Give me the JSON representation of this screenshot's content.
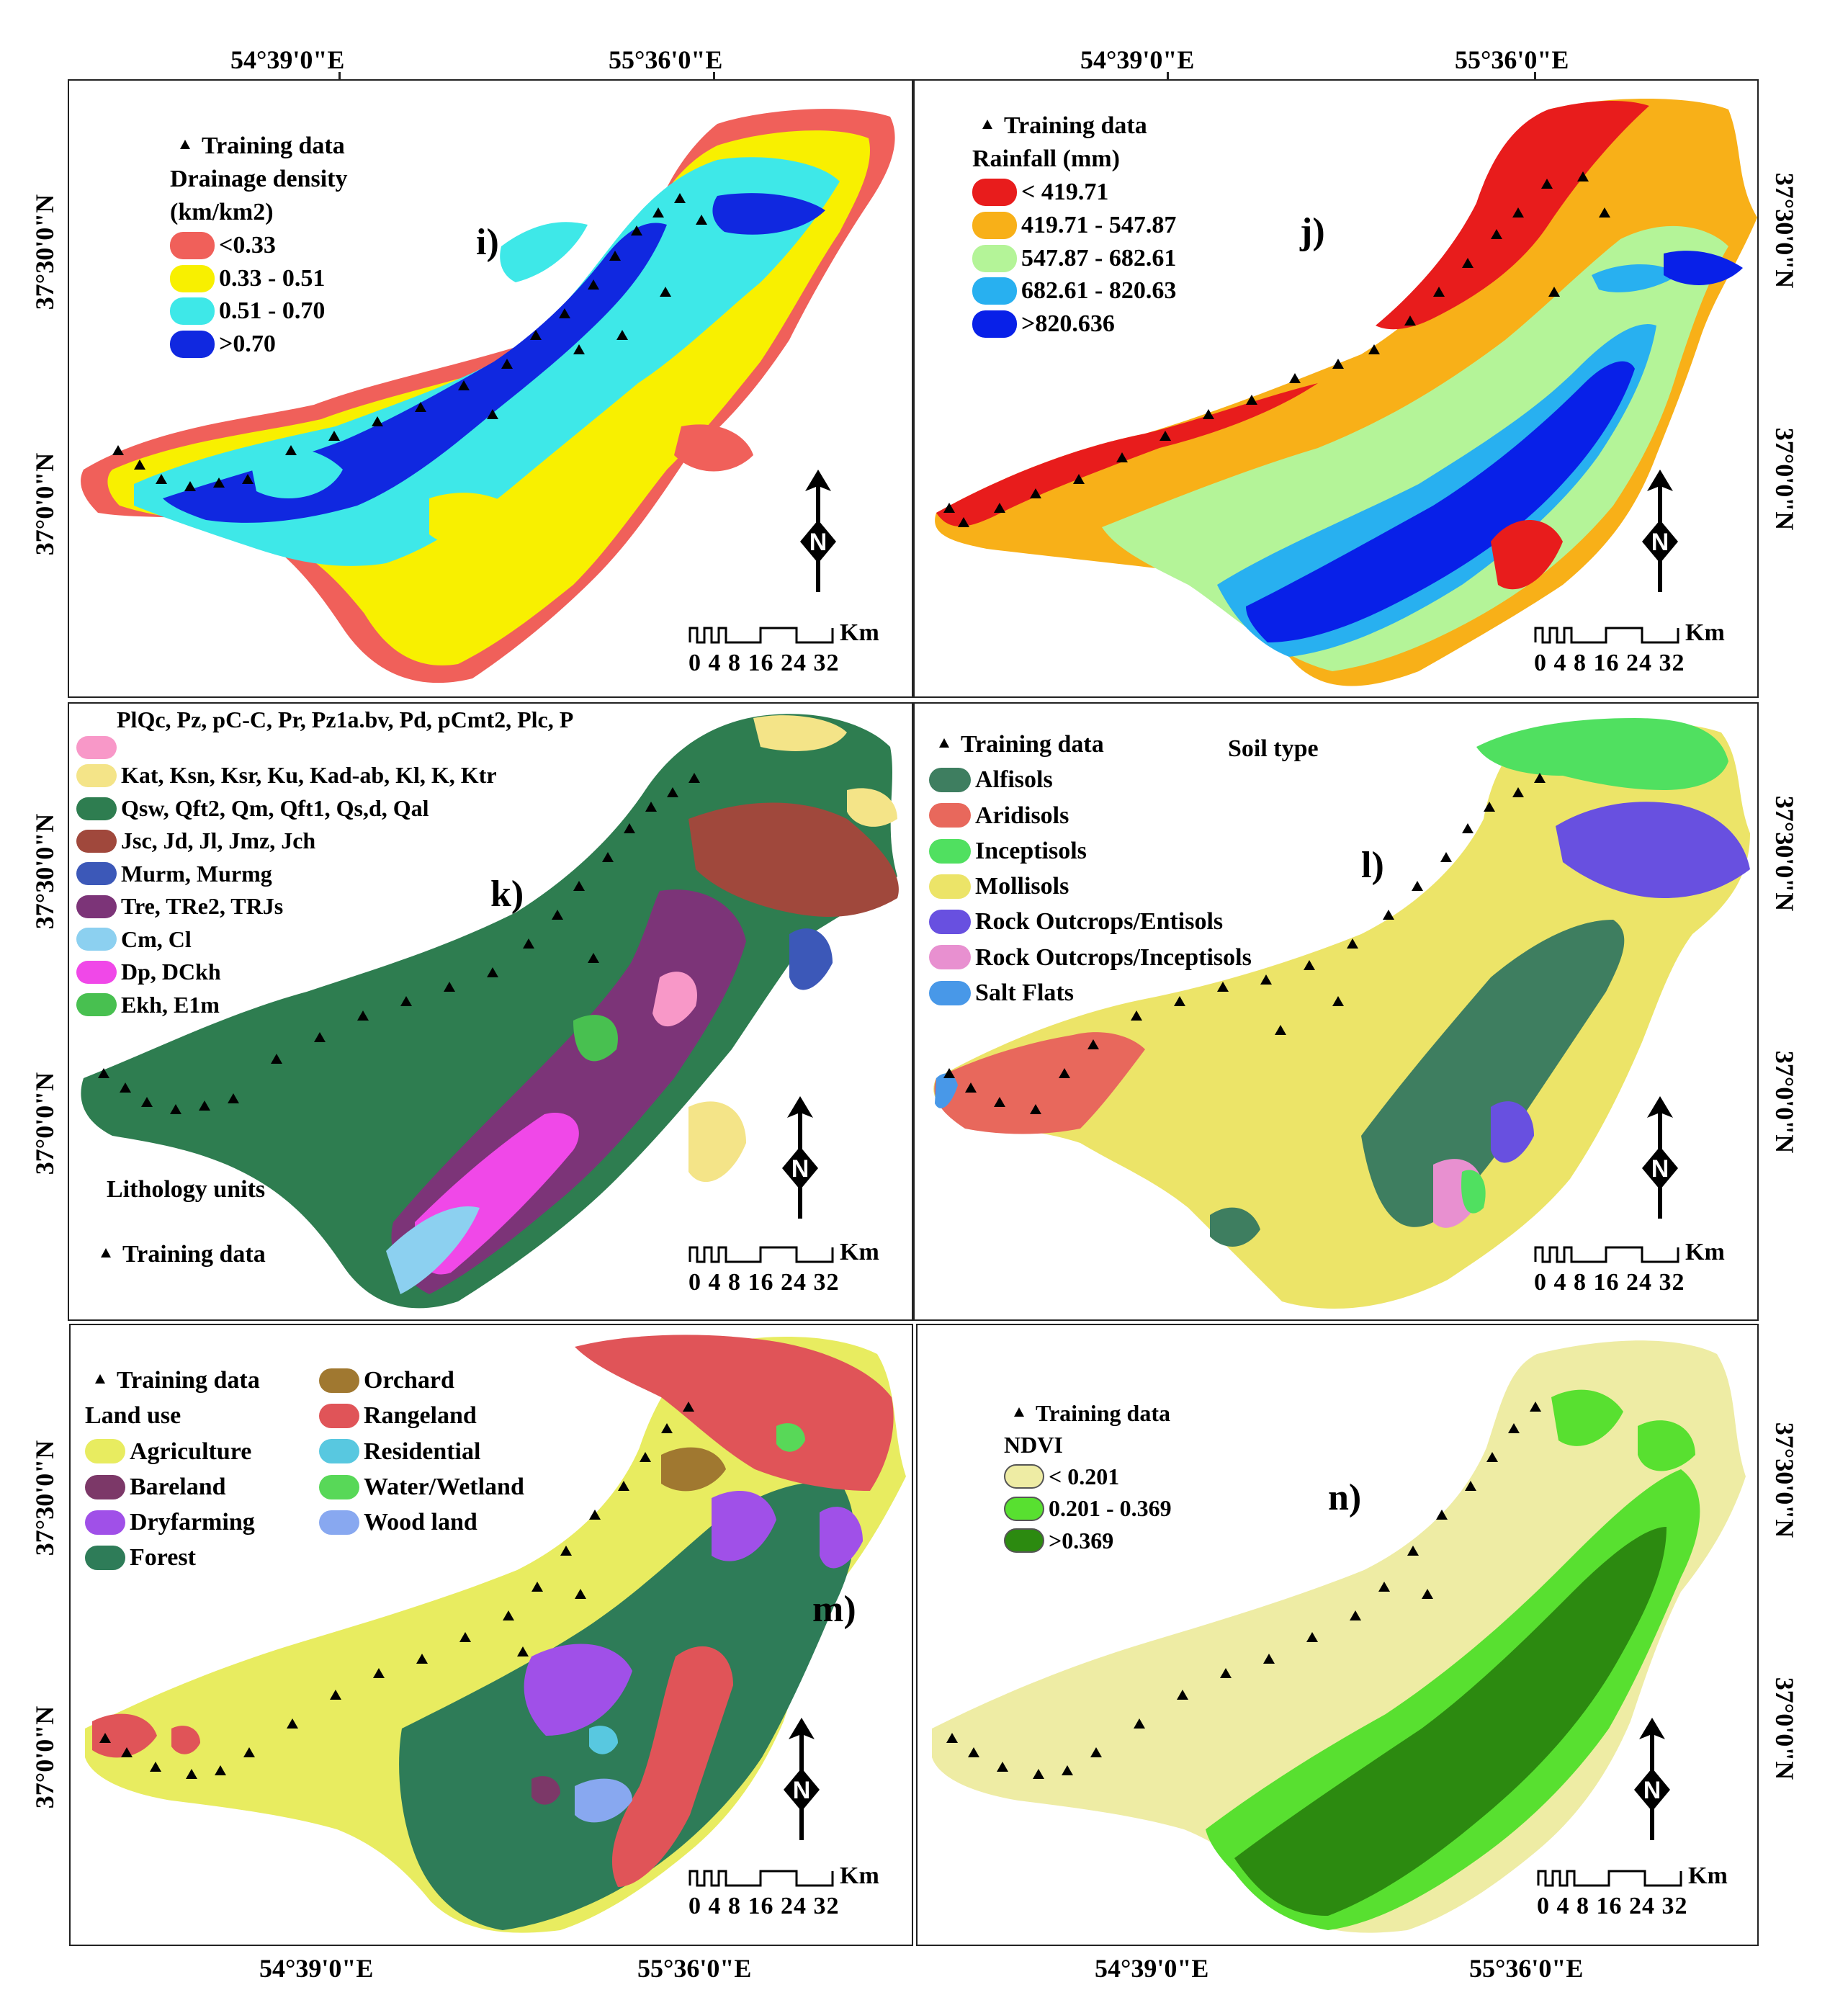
{
  "coords": {
    "lon_left": "54°39'0\"E",
    "lon_right": "55°36'0\"E",
    "lat_upper": "37°30'0\"N",
    "lat_lower": "37°0'0\"N"
  },
  "common": {
    "training": "Training data",
    "scale_unit": "Km",
    "scale_ticks": "0 4 8   16  24  32",
    "north_letter": "N"
  },
  "panels": {
    "i": {
      "label": "i)",
      "legend_title": "Drainage density",
      "legend_unit": "(km/km2)",
      "classes": [
        {
          "label": "<0.33",
          "color": "#f0605a"
        },
        {
          "label": "0.33 - 0.51",
          "color": "#f8f000"
        },
        {
          "label": "0.51 - 0.70",
          "color": "#3ee8e8"
        },
        {
          "label": ">0.70",
          "color": "#1028e0"
        }
      ]
    },
    "j": {
      "label": "j)",
      "legend_title": "Rainfall (mm)",
      "classes": [
        {
          "label": "< 419.71",
          "color": "#e81c1c"
        },
        {
          "label": "419.71 - 547.87",
          "color": "#f8b018"
        },
        {
          "label": "547.87 - 682.61",
          "color": "#b4f498"
        },
        {
          "label": "682.61 - 820.63",
          "color": "#28b0f0"
        },
        {
          "label": ">820.636",
          "color": "#0820e8"
        }
      ]
    },
    "k": {
      "label": "k)",
      "legend_title": "Lithology units",
      "classes": [
        {
          "label": "PlQc, Pz, pC-C, Pr, Pz1a.bv, Pd, pCmt2, Plc, P",
          "color": "#f898c8"
        },
        {
          "label": "Kat, Ksn, Ksr, Ku, Kad-ab, Kl, K, Ktr",
          "color": "#f4e488"
        },
        {
          "label": "Qsw, Qft2, Qm, Qft1, Qs,d, Qal",
          "color": "#2e7d50"
        },
        {
          "label": "Jsc, Jd, Jl, Jmz, Jch",
          "color": "#a0483c"
        },
        {
          "label": "Murm, Murmg",
          "color": "#3c58b8"
        },
        {
          "label": "Tre, TRe2, TRJs",
          "color": "#7c3478"
        },
        {
          "label": "Cm, Cl",
          "color": "#8cd0f0"
        },
        {
          "label": "Dp, DCkh",
          "color": "#f048e8"
        },
        {
          "label": "Ekh, E1m",
          "color": "#48c050"
        }
      ]
    },
    "l": {
      "label": "l)",
      "legend_title": "Soil type",
      "classes": [
        {
          "label": "Alfisols",
          "color": "#3e7e60"
        },
        {
          "label": "Aridisols",
          "color": "#e8685c"
        },
        {
          "label": "Inceptisols",
          "color": "#50e060"
        },
        {
          "label": "Mollisols",
          "color": "#ece468"
        },
        {
          "label": "Rock Outcrops/Entisols",
          "color": "#6850e0"
        },
        {
          "label": "Rock Outcrops/Inceptisols",
          "color": "#e890d0"
        },
        {
          "label": "Salt Flats",
          "color": "#4898e8"
        }
      ]
    },
    "m": {
      "label": "m)",
      "legend_title": "Land use",
      "classes": [
        {
          "label": "Agriculture",
          "color": "#e8ec60"
        },
        {
          "label": "Bareland",
          "color": "#7c3868"
        },
        {
          "label": "Dryfarming",
          "color": "#a050e8"
        },
        {
          "label": "Forest",
          "color": "#2e7c58"
        },
        {
          "label": "Orchard",
          "color": "#a07830"
        },
        {
          "label": "Rangeland",
          "color": "#e05458"
        },
        {
          "label": "Residential",
          "color": "#58c8e0"
        },
        {
          "label": "Water/Wetland",
          "color": "#58d858"
        },
        {
          "label": "Wood land",
          "color": "#88a8f0"
        }
      ]
    },
    "n": {
      "label": "n)",
      "legend_title": "NDVI",
      "classes": [
        {
          "label": "< 0.201",
          "color": "#eeeca4"
        },
        {
          "label": "0.201 - 0.369",
          "color": "#58e030"
        },
        {
          "label": ">0.369",
          "color": "#2c8a10"
        }
      ]
    }
  }
}
